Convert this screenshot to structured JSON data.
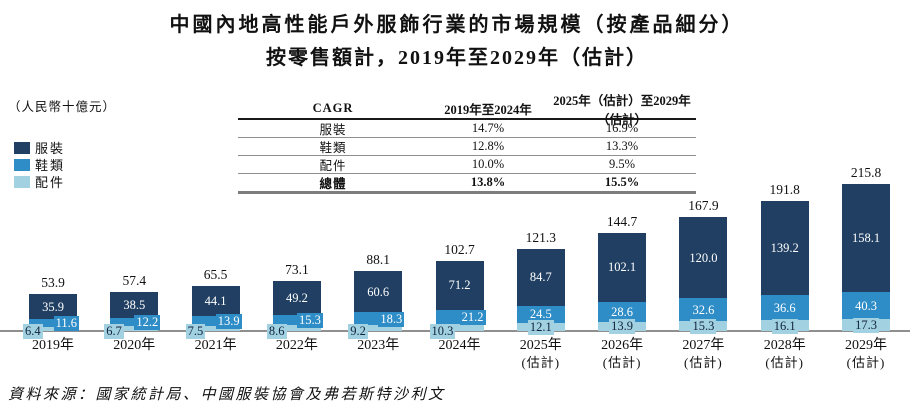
{
  "title": {
    "line1": "中國內地高性能戶外服飾行業的市場規模（按產品細分）",
    "line2": "按零售額計，2019年至2029年（估計）"
  },
  "unit_label": "（人民幣十億元）",
  "legend": {
    "items": [
      {
        "label": "服裝",
        "color": "#203f62"
      },
      {
        "label": "鞋類",
        "color": "#2e8cc7"
      },
      {
        "label": "配件",
        "color": "#a2d2e2"
      }
    ]
  },
  "cagr_table": {
    "col_headers": [
      "CAGR",
      "2019年至2024年",
      "2025年（估計）至2029年（估計）"
    ],
    "rows": [
      {
        "label": "服裝",
        "period1": "14.7%",
        "period2": "16.9%",
        "bold": false
      },
      {
        "label": "鞋類",
        "period1": "12.8%",
        "period2": "13.3%",
        "bold": false
      },
      {
        "label": "配件",
        "period1": "10.0%",
        "period2": "9.5%",
        "bold": false
      },
      {
        "label": "總體",
        "period1": "13.8%",
        "period2": "15.5%",
        "bold": true
      }
    ]
  },
  "chart_data": {
    "type": "bar",
    "stacked": true,
    "title": "中國內地高性能戶外服飾行業的市場規模（按產品細分）按零售額計，2019年至2029年（估計）",
    "unit": "人民幣十億元",
    "grid": false,
    "legend_position": "left",
    "ylim": [
      0,
      230
    ],
    "categories": [
      "2019年",
      "2020年",
      "2021年",
      "2022年",
      "2023年",
      "2024年",
      "2025年",
      "2026年",
      "2027年",
      "2028年",
      "2029年"
    ],
    "category_notes": [
      "",
      "",
      "",
      "",
      "",
      "",
      "(估計)",
      "(估計)",
      "(估計)",
      "(估計)",
      "(估計)"
    ],
    "series": [
      {
        "name": "服裝",
        "color": "#203f62",
        "values": [
          35.9,
          38.5,
          44.1,
          49.2,
          60.6,
          71.2,
          84.7,
          102.1,
          120.0,
          139.2,
          158.1
        ]
      },
      {
        "name": "鞋類",
        "color": "#2e8cc7",
        "values": [
          11.6,
          12.2,
          13.9,
          15.3,
          18.3,
          21.2,
          24.5,
          28.6,
          32.6,
          36.6,
          40.3
        ]
      },
      {
        "name": "配件",
        "color": "#a2d2e2",
        "values": [
          6.4,
          6.7,
          7.5,
          8.6,
          9.2,
          10.3,
          12.1,
          13.9,
          15.3,
          16.1,
          17.3
        ]
      }
    ],
    "totals": [
      53.9,
      57.4,
      65.5,
      73.1,
      88.1,
      102.7,
      121.3,
      144.7,
      167.9,
      191.8,
      215.8
    ]
  },
  "source": "資料來源：國家統計局、中國服裝協會及弗若斯特沙利文"
}
